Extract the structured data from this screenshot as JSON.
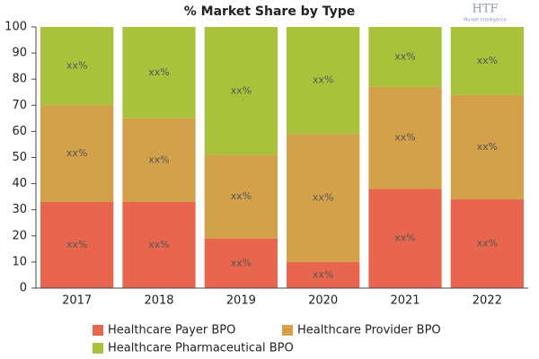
{
  "chart_data": {
    "type": "stacked_bar",
    "title": "% Market Share by Type",
    "categories": [
      "2017",
      "2018",
      "2019",
      "2020",
      "2021",
      "2022"
    ],
    "series": [
      {
        "name": "Healthcare Payer BPO",
        "color": "#e8664d",
        "values": [
          33,
          33,
          19,
          10,
          38,
          34
        ],
        "value_labels": [
          "xx%",
          "xx%",
          "xx%",
          "xx%",
          "xx%",
          "xx%"
        ]
      },
      {
        "name": "Healthcare Provider BPO",
        "color": "#d3a14a",
        "values": [
          37,
          32,
          32,
          49,
          39,
          40
        ],
        "value_labels": [
          "xx%",
          "xx%",
          "xx%",
          "xx%",
          "xx%",
          "xx%"
        ]
      },
      {
        "name": "Healthcare Pharmaceutical BPO",
        "color": "#a9c23b",
        "values": [
          30,
          35,
          49,
          41,
          23,
          26
        ],
        "value_labels": [
          "xx%",
          "xx%",
          "xx%",
          "xx%",
          "xx%",
          "xx%"
        ]
      }
    ],
    "ylim": [
      0,
      100
    ],
    "yticks": [
      0,
      10,
      20,
      30,
      40,
      50,
      60,
      70,
      80,
      90,
      100
    ],
    "grid": false,
    "legend": "bottom"
  },
  "logo": {
    "text": "HTF",
    "subtext": "Market Intelligence"
  }
}
